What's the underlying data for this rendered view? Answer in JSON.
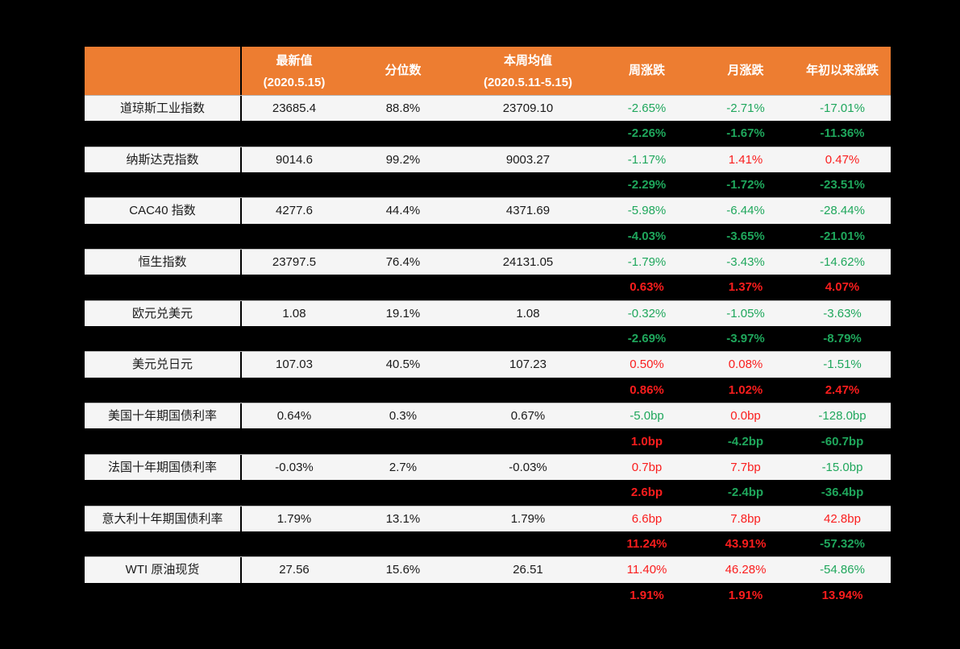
{
  "page": {
    "background": "#000000"
  },
  "table": {
    "colors": {
      "header_bg": "#ED7D31",
      "header_text": "#FFFFFF",
      "row_bg": "#F5F5F5",
      "page_bg": "#000000",
      "red": "#FA1D1D",
      "green": "#1FA75C",
      "text": "#1A1A1A"
    },
    "header": {
      "empty": "",
      "latest": "最新值",
      "latest_date": "(2020.5.15)",
      "percentile": "分位数",
      "week_avg": "本周均值",
      "week_avg_date": "(2020.5.11-5.15)",
      "week_chg": "周涨跌",
      "month_chg": "月涨跌",
      "ytd_chg": "年初以来涨跌"
    }
  },
  "chart_data": {
    "type": "table",
    "title": "",
    "columns": [
      "",
      "最新值 (2020.5.15)",
      "分位数",
      "本周均值 (2020.5.11-5.15)",
      "周涨跌",
      "月涨跌",
      "年初以来涨跌"
    ],
    "rows": [
      {
        "kind": "main",
        "name": "道琼斯工业指数",
        "latest": "23685.4",
        "percentile": "88.8%",
        "week_avg": "23709.10",
        "week_chg": "-2.65%",
        "month_chg": "-2.71%",
        "ytd_chg": "-17.01%",
        "chg_colors": [
          "green",
          "green",
          "green"
        ]
      },
      {
        "kind": "sub",
        "week_chg": "-2.26%",
        "month_chg": "-1.67%",
        "ytd_chg": "-11.36%",
        "chg_colors": [
          "green",
          "green",
          "green"
        ]
      },
      {
        "kind": "main",
        "name": "纳斯达克指数",
        "latest": "9014.6",
        "percentile": "99.2%",
        "week_avg": "9003.27",
        "week_chg": "-1.17%",
        "month_chg": "1.41%",
        "ytd_chg": "0.47%",
        "chg_colors": [
          "green",
          "red",
          "red"
        ]
      },
      {
        "kind": "sub",
        "week_chg": "-2.29%",
        "month_chg": "-1.72%",
        "ytd_chg": "-23.51%",
        "chg_colors": [
          "green",
          "green",
          "green"
        ]
      },
      {
        "kind": "main",
        "name": "CAC40 指数",
        "latest": "4277.6",
        "percentile": "44.4%",
        "week_avg": "4371.69",
        "week_chg": "-5.98%",
        "month_chg": "-6.44%",
        "ytd_chg": "-28.44%",
        "chg_colors": [
          "green",
          "green",
          "green"
        ]
      },
      {
        "kind": "sub",
        "week_chg": "-4.03%",
        "month_chg": "-3.65%",
        "ytd_chg": "-21.01%",
        "chg_colors": [
          "green",
          "green",
          "green"
        ]
      },
      {
        "kind": "main",
        "name": "恒生指数",
        "latest": "23797.5",
        "percentile": "76.4%",
        "week_avg": "24131.05",
        "week_chg": "-1.79%",
        "month_chg": "-3.43%",
        "ytd_chg": "-14.62%",
        "chg_colors": [
          "green",
          "green",
          "green"
        ]
      },
      {
        "kind": "sub",
        "week_chg": "0.63%",
        "month_chg": "1.37%",
        "ytd_chg": "4.07%",
        "chg_colors": [
          "red",
          "red",
          "red"
        ]
      },
      {
        "kind": "main",
        "name": "欧元兑美元",
        "latest": "1.08",
        "percentile": "19.1%",
        "week_avg": "1.08",
        "week_chg": "-0.32%",
        "month_chg": "-1.05%",
        "ytd_chg": "-3.63%",
        "chg_colors": [
          "green",
          "green",
          "green"
        ]
      },
      {
        "kind": "sub",
        "week_chg": "-2.69%",
        "month_chg": "-3.97%",
        "ytd_chg": "-8.79%",
        "chg_colors": [
          "green",
          "green",
          "green"
        ]
      },
      {
        "kind": "main",
        "name": "美元兑日元",
        "latest": "107.03",
        "percentile": "40.5%",
        "week_avg": "107.23",
        "week_chg": "0.50%",
        "month_chg": "0.08%",
        "ytd_chg": "-1.51%",
        "chg_colors": [
          "red",
          "red",
          "green"
        ]
      },
      {
        "kind": "sub",
        "week_chg": "0.86%",
        "month_chg": "1.02%",
        "ytd_chg": "2.47%",
        "chg_colors": [
          "red",
          "red",
          "red"
        ]
      },
      {
        "kind": "main",
        "name": "美国十年期国债利率",
        "latest": "0.64%",
        "percentile": "0.3%",
        "week_avg": "0.67%",
        "week_chg": "-5.0bp",
        "month_chg": "0.0bp",
        "ytd_chg": "-128.0bp",
        "chg_colors": [
          "green",
          "red",
          "green"
        ]
      },
      {
        "kind": "sub",
        "week_chg": "1.0bp",
        "month_chg": "-4.2bp",
        "ytd_chg": "-60.7bp",
        "chg_colors": [
          "red",
          "green",
          "green"
        ]
      },
      {
        "kind": "main",
        "name": "法国十年期国债利率",
        "latest": "-0.03%",
        "percentile": "2.7%",
        "week_avg": "-0.03%",
        "week_chg": "0.7bp",
        "month_chg": "7.7bp",
        "ytd_chg": "-15.0bp",
        "chg_colors": [
          "red",
          "red",
          "green"
        ]
      },
      {
        "kind": "sub",
        "week_chg": "2.6bp",
        "month_chg": "-2.4bp",
        "ytd_chg": "-36.4bp",
        "chg_colors": [
          "red",
          "green",
          "green"
        ]
      },
      {
        "kind": "main",
        "name": "意大利十年期国债利率",
        "latest": "1.79%",
        "percentile": "13.1%",
        "week_avg": "1.79%",
        "week_chg": "6.6bp",
        "month_chg": "7.8bp",
        "ytd_chg": "42.8bp",
        "chg_colors": [
          "red",
          "red",
          "red"
        ]
      },
      {
        "kind": "sub",
        "week_chg": "11.24%",
        "month_chg": "43.91%",
        "ytd_chg": "-57.32%",
        "chg_colors": [
          "red",
          "red",
          "green"
        ]
      },
      {
        "kind": "main",
        "name": "WTI 原油现货",
        "latest": "27.56",
        "percentile": "15.6%",
        "week_avg": "26.51",
        "week_chg": "11.40%",
        "month_chg": "46.28%",
        "ytd_chg": "-54.86%",
        "chg_colors": [
          "red",
          "red",
          "green"
        ]
      },
      {
        "kind": "sub",
        "week_chg": "1.91%",
        "month_chg": "1.91%",
        "ytd_chg": "13.94%",
        "chg_colors": [
          "red",
          "red",
          "red"
        ]
      }
    ]
  }
}
